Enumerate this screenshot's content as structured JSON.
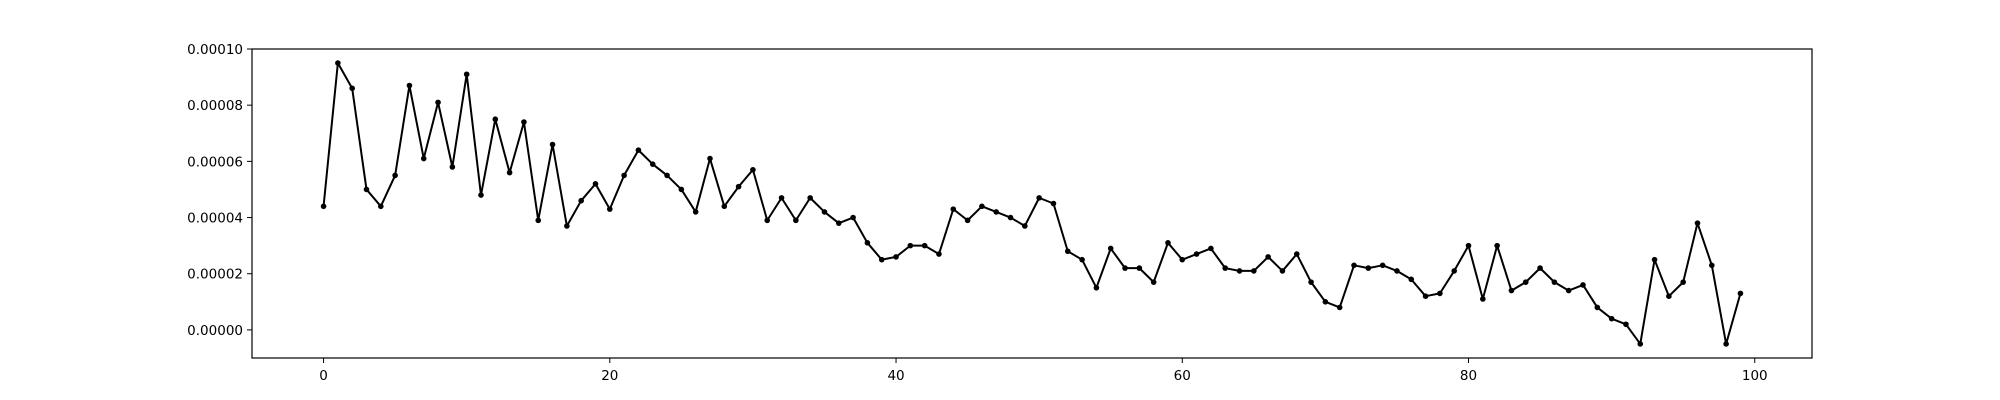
{
  "chart_data": {
    "type": "line",
    "title": "",
    "xlabel": "",
    "ylabel": "",
    "xlim": [
      -5,
      104
    ],
    "ylim": [
      -1e-05,
      0.0001
    ],
    "xticks": [
      0,
      20,
      40,
      60,
      80,
      100
    ],
    "xtick_labels": [
      "0",
      "20",
      "40",
      "60",
      "80",
      "100"
    ],
    "yticks": [
      0,
      2e-05,
      4e-05,
      6e-05,
      8e-05,
      0.0001
    ],
    "ytick_labels": [
      "0.00000",
      "0.00002",
      "0.00004",
      "0.00006",
      "0.00008",
      "0.00010"
    ],
    "grid": false,
    "legend": "none",
    "series": [
      {
        "color": "#000000",
        "marker": "dot",
        "x": [
          0,
          1,
          2,
          3,
          4,
          5,
          6,
          7,
          8,
          9,
          10,
          11,
          12,
          13,
          14,
          15,
          16,
          17,
          18,
          19,
          20,
          21,
          22,
          23,
          24,
          25,
          26,
          27,
          28,
          29,
          30,
          31,
          32,
          33,
          34,
          35,
          36,
          37,
          38,
          39,
          40,
          41,
          42,
          43,
          44,
          45,
          46,
          47,
          48,
          49,
          50,
          51,
          52,
          53,
          54,
          55,
          56,
          57,
          58,
          59,
          60,
          61,
          62,
          63,
          64,
          65,
          66,
          67,
          68,
          69,
          70,
          71,
          72,
          73,
          74,
          75,
          76,
          77,
          78,
          79,
          80,
          81,
          82,
          83,
          84,
          85,
          86,
          87,
          88,
          89,
          90,
          91,
          92,
          93,
          94,
          95,
          96,
          97,
          98,
          99
        ],
        "values": [
          4.4e-05,
          9.5e-05,
          8.6e-05,
          5e-05,
          4.4e-05,
          5.5e-05,
          8.7e-05,
          6.1e-05,
          8.1e-05,
          5.8e-05,
          9.1e-05,
          4.8e-05,
          7.5e-05,
          5.6e-05,
          7.4e-05,
          3.9e-05,
          6.6e-05,
          3.7e-05,
          4.6e-05,
          5.2e-05,
          4.3e-05,
          5.5e-05,
          6.4e-05,
          5.9e-05,
          5.5e-05,
          5e-05,
          4.2e-05,
          6.1e-05,
          4.4e-05,
          5.1e-05,
          5.7e-05,
          3.9e-05,
          4.7e-05,
          3.9e-05,
          4.7e-05,
          4.2e-05,
          3.8e-05,
          4e-05,
          3.1e-05,
          2.5e-05,
          2.6e-05,
          3e-05,
          3e-05,
          2.7e-05,
          4.3e-05,
          3.9e-05,
          4.4e-05,
          4.2e-05,
          4e-05,
          3.7e-05,
          4.7e-05,
          4.5e-05,
          2.8e-05,
          2.5e-05,
          1.5e-05,
          2.9e-05,
          2.2e-05,
          2.2e-05,
          1.7e-05,
          3.1e-05,
          2.5e-05,
          2.7e-05,
          2.9e-05,
          2.2e-05,
          2.1e-05,
          2.1e-05,
          2.6e-05,
          2.1e-05,
          2.7e-05,
          1.7e-05,
          1e-05,
          8e-06,
          2.3e-05,
          2.2e-05,
          2.3e-05,
          2.1e-05,
          1.8e-05,
          1.2e-05,
          1.3e-05,
          2.1e-05,
          3e-05,
          1.1e-05,
          3e-05,
          1.4e-05,
          1.7e-05,
          2.2e-05,
          1.7e-05,
          1.4e-05,
          1.6e-05,
          8e-06,
          4e-06,
          2e-06,
          -5e-06,
          2.5e-05,
          1.2e-05,
          1.7e-05,
          3.8e-05,
          2.3e-05,
          -5e-06,
          1.3e-05
        ]
      }
    ]
  }
}
